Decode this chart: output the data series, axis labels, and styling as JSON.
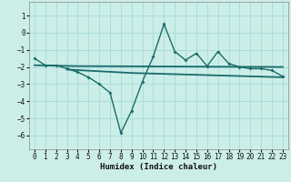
{
  "xlabel": "Humidex (Indice chaleur)",
  "background_color": "#cceee8",
  "grid_color": "#aaddda",
  "line_color": "#1a6b6b",
  "x_values": [
    0,
    1,
    2,
    3,
    4,
    5,
    6,
    7,
    8,
    9,
    10,
    11,
    12,
    13,
    14,
    15,
    16,
    17,
    18,
    19,
    20,
    21,
    22,
    23
  ],
  "line1_y": [
    -1.5,
    -1.9,
    -1.9,
    -2.1,
    -2.3,
    -2.6,
    -3.0,
    -3.5,
    -5.85,
    -4.55,
    -2.85,
    -1.4,
    0.5,
    -1.1,
    -1.6,
    -1.2,
    -1.95,
    -1.1,
    -1.8,
    -2.0,
    -2.1,
    -2.1,
    -2.2,
    -2.55
  ],
  "line2_x": [
    0,
    4,
    23
  ],
  "line2_y": [
    -1.9,
    -1.95,
    -2.0
  ],
  "line3_x": [
    3,
    9,
    23
  ],
  "line3_y": [
    -2.15,
    -2.35,
    -2.6
  ],
  "xlim": [
    -0.5,
    23.5
  ],
  "ylim": [
    -6.8,
    1.8
  ],
  "yticks": [
    1,
    0,
    -1,
    -2,
    -3,
    -4,
    -5,
    -6
  ],
  "xticks": [
    0,
    1,
    2,
    3,
    4,
    5,
    6,
    7,
    8,
    9,
    10,
    11,
    12,
    13,
    14,
    15,
    16,
    17,
    18,
    19,
    20,
    21,
    22,
    23
  ]
}
